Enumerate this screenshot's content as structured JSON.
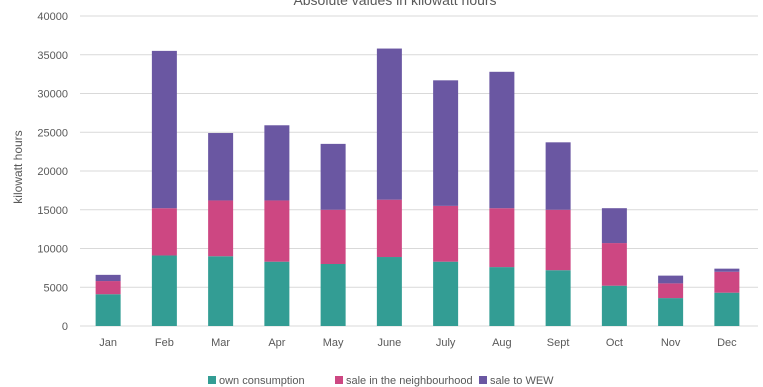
{
  "chart_data": {
    "type": "bar",
    "stacked": true,
    "title": "Absolute values in kilowatt hours",
    "xlabel": "",
    "ylabel": "kilowatt hours",
    "ylim": [
      0,
      40000
    ],
    "yticks": [
      0,
      5000,
      10000,
      15000,
      20000,
      25000,
      30000,
      35000,
      40000
    ],
    "grid": true,
    "legend_position": "bottom",
    "categories": [
      "Jan",
      "Feb",
      "Mar",
      "Apr",
      "May",
      "June",
      "July",
      "Aug",
      "Sept",
      "Oct",
      "Nov",
      "Dec"
    ],
    "series": [
      {
        "name": "own consumption",
        "color": "#339d94",
        "values": [
          4100,
          9100,
          9000,
          8300,
          8000,
          8900,
          8300,
          7600,
          7200,
          5200,
          3600,
          4300
        ]
      },
      {
        "name": "sale in the neighbourhood",
        "color": "#cd4782",
        "values": [
          1700,
          6100,
          7200,
          7900,
          7000,
          7400,
          7200,
          7600,
          7800,
          5500,
          1900,
          2700
        ]
      },
      {
        "name": "sale to WEW",
        "color": "#6a57a2",
        "values": [
          800,
          20300,
          8700,
          9700,
          8500,
          19500,
          16200,
          17600,
          8700,
          4500,
          1000,
          400
        ]
      }
    ]
  }
}
